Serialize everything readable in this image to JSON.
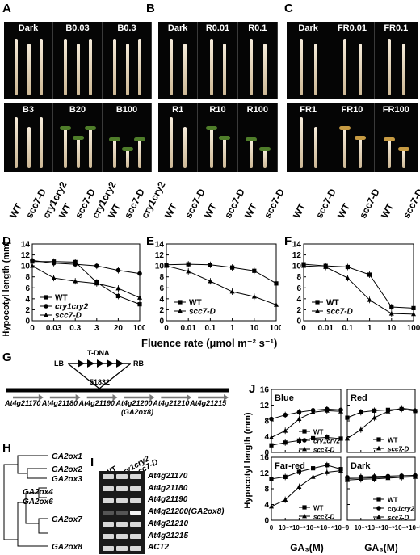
{
  "photo_panels": {
    "A": {
      "letter": "A",
      "top_labels": [
        "Dark",
        "B0.03",
        "B0.3"
      ],
      "bottom_labels": [
        "B3",
        "B20",
        "B100"
      ],
      "genotypes": [
        "WT",
        "scc7-D",
        "cry1cry2",
        "WT",
        "scc7-D",
        "cry1cry2",
        "WT",
        "scc7-D",
        "cry1cry2"
      ]
    },
    "B": {
      "letter": "B",
      "top_labels": [
        "Dark",
        "R0.01",
        "R0.1"
      ],
      "bottom_labels": [
        "R1",
        "R10",
        "R100"
      ],
      "genotypes": [
        "WT",
        "scc7-D",
        "WT",
        "scc7-D",
        "WT",
        "scc7-D"
      ]
    },
    "C": {
      "letter": "C",
      "top_labels": [
        "Dark",
        "FR0.01",
        "FR0.1"
      ],
      "bottom_labels": [
        "FR1",
        "FR10",
        "FR100"
      ],
      "genotypes": [
        "WT",
        "scc7-D",
        "WT",
        "scc7-D",
        "WT",
        "scc7-D"
      ]
    }
  },
  "fluence_chart_common": {
    "ylabel": "Hypocotyl length (mm)",
    "xlabel": "Fluence rate (μmol m⁻² s⁻¹)",
    "yticks": [
      "0",
      "2",
      "4",
      "6",
      "8",
      "10",
      "12",
      "14"
    ]
  },
  "ga_common": {
    "ylabel": "Hypocotyl length (mm)",
    "xlabel": "GA₃(M)",
    "xticks": [
      "0",
      "10⁻⁷",
      "10⁻⁶",
      "10⁻⁵",
      "10⁻⁴",
      "10⁻³"
    ]
  },
  "chart_data": [
    {
      "panel": "D",
      "type": "line",
      "x": [
        "0",
        "0.03",
        "0.3",
        "3",
        "20",
        "100"
      ],
      "ylim": [
        0,
        14
      ],
      "series": [
        {
          "name": "WT",
          "marker": "square",
          "values": [
            10.8,
            10.8,
            10.7,
            7.0,
            4.5,
            3.0
          ]
        },
        {
          "name": "cry1cry2",
          "marker": "circle",
          "values": [
            11.0,
            10.5,
            10.3,
            10.0,
            9.2,
            8.6
          ]
        },
        {
          "name": "scc7-D",
          "marker": "triangle",
          "values": [
            10.0,
            7.8,
            7.2,
            6.8,
            5.9,
            4.2
          ]
        }
      ]
    },
    {
      "panel": "E",
      "type": "line",
      "x": [
        "0",
        "0.01",
        "0.1",
        "1",
        "10",
        "100"
      ],
      "ylim": [
        0,
        14
      ],
      "series": [
        {
          "name": "WT",
          "marker": "square",
          "values": [
            10.2,
            10.3,
            10.2,
            9.7,
            9.1,
            6.8
          ]
        },
        {
          "name": "scc7-D",
          "marker": "triangle",
          "values": [
            10.0,
            9.0,
            7.2,
            5.3,
            4.4,
            2.9
          ]
        }
      ]
    },
    {
      "panel": "F",
      "type": "line",
      "x": [
        "0",
        "0.01",
        "0.1",
        "1",
        "10",
        "100"
      ],
      "ylim": [
        0,
        14
      ],
      "series": [
        {
          "name": "WT",
          "marker": "square",
          "values": [
            10.3,
            10.0,
            9.8,
            8.4,
            2.5,
            2.3
          ]
        },
        {
          "name": "scc7-D",
          "marker": "triangle",
          "values": [
            10.0,
            9.8,
            7.8,
            3.8,
            1.3,
            1.2
          ]
        }
      ]
    },
    {
      "panel": "J-Blue",
      "type": "line",
      "title": "Blue",
      "x": [
        "0",
        "10⁻⁷",
        "10⁻⁶",
        "10⁻⁵",
        "10⁻⁴",
        "10⁻³"
      ],
      "ylim": [
        0,
        16
      ],
      "series": [
        {
          "name": "WT",
          "marker": "square",
          "values": [
            1.8,
            2.5,
            3.0,
            3.6,
            3.8,
            3.5
          ]
        },
        {
          "name": "cry1cry2",
          "marker": "circle",
          "values": [
            8.5,
            9.5,
            10.2,
            10.7,
            11.0,
            10.8
          ]
        },
        {
          "name": "scc7-D",
          "marker": "triangle",
          "values": [
            3.8,
            5.5,
            8.5,
            10.2,
            10.6,
            10.4
          ]
        }
      ]
    },
    {
      "panel": "J-Red",
      "type": "line",
      "title": "Red",
      "x": [
        "0",
        "10⁻⁷",
        "10⁻⁶",
        "10⁻⁵",
        "10⁻⁴",
        "10⁻³"
      ],
      "ylim": [
        0,
        16
      ],
      "series": [
        {
          "name": "WT",
          "marker": "square",
          "values": [
            8.8,
            10.2,
            10.6,
            10.8,
            11.0,
            10.5
          ]
        },
        {
          "name": "scc7-D",
          "marker": "triangle",
          "values": [
            3.5,
            5.8,
            8.8,
            10.4,
            11.2,
            10.8
          ]
        }
      ]
    },
    {
      "panel": "J-Far-red",
      "type": "line",
      "title": "Far-red",
      "x": [
        "0",
        "10⁻⁷",
        "10⁻⁶",
        "10⁻⁵",
        "10⁻⁴",
        "10⁻³"
      ],
      "ylim": [
        0,
        16
      ],
      "series": [
        {
          "name": "WT",
          "marker": "square",
          "values": [
            10.5,
            11.0,
            12.3,
            13.2,
            14.0,
            13.0
          ]
        },
        {
          "name": "scc7-D",
          "marker": "triangle",
          "values": [
            3.5,
            5.2,
            8.5,
            11.0,
            12.2,
            12.6
          ]
        }
      ]
    },
    {
      "panel": "J-Dark",
      "type": "line",
      "title": "Dark",
      "x": [
        "0",
        "10⁻⁷",
        "10⁻⁶",
        "10⁻⁵",
        "10⁻⁴",
        "10⁻³"
      ],
      "ylim": [
        0,
        16
      ],
      "series": [
        {
          "name": "WT",
          "marker": "square",
          "values": [
            10.6,
            10.7,
            10.8,
            10.9,
            11.0,
            11.1
          ]
        },
        {
          "name": "cry1cry2",
          "marker": "circle",
          "values": [
            10.9,
            11.0,
            11.1,
            11.2,
            11.3,
            11.4
          ]
        },
        {
          "name": "scc7-D",
          "marker": "triangle",
          "values": [
            10.2,
            10.4,
            10.5,
            10.7,
            10.9,
            11.0
          ]
        }
      ]
    }
  ],
  "panel_G": {
    "letter": "G",
    "tdna": "T-DNA",
    "lb": "LB",
    "rb": "RB",
    "insertion": "51832",
    "genes": [
      "At4g21170",
      "At4g21180",
      "At4g21190",
      "At4g21200",
      "At4g21210",
      "At4g21215"
    ],
    "note": "(GA2ox8)"
  },
  "panel_H": {
    "letter": "H",
    "leaves": [
      "GA2ox1",
      "GA2ox2",
      "GA2ox3",
      "GA2ox4",
      "GA2ox6",
      "GA2ox7",
      "GA2ox8"
    ]
  },
  "panel_I": {
    "letter": "I",
    "lanes": [
      "WT",
      "cry1cry2",
      "scc7-D"
    ],
    "genes": [
      "At4g21170",
      "At4g21180",
      "At4g21190",
      "At4g21200(GA2ox8)",
      "At4g21210",
      "At4g21215",
      "ACT2"
    ]
  },
  "panel_J": {
    "letter": "J"
  },
  "colors": {
    "photo_bg": "#050505",
    "seedling": "#efe3cc",
    "line": "#000000"
  }
}
